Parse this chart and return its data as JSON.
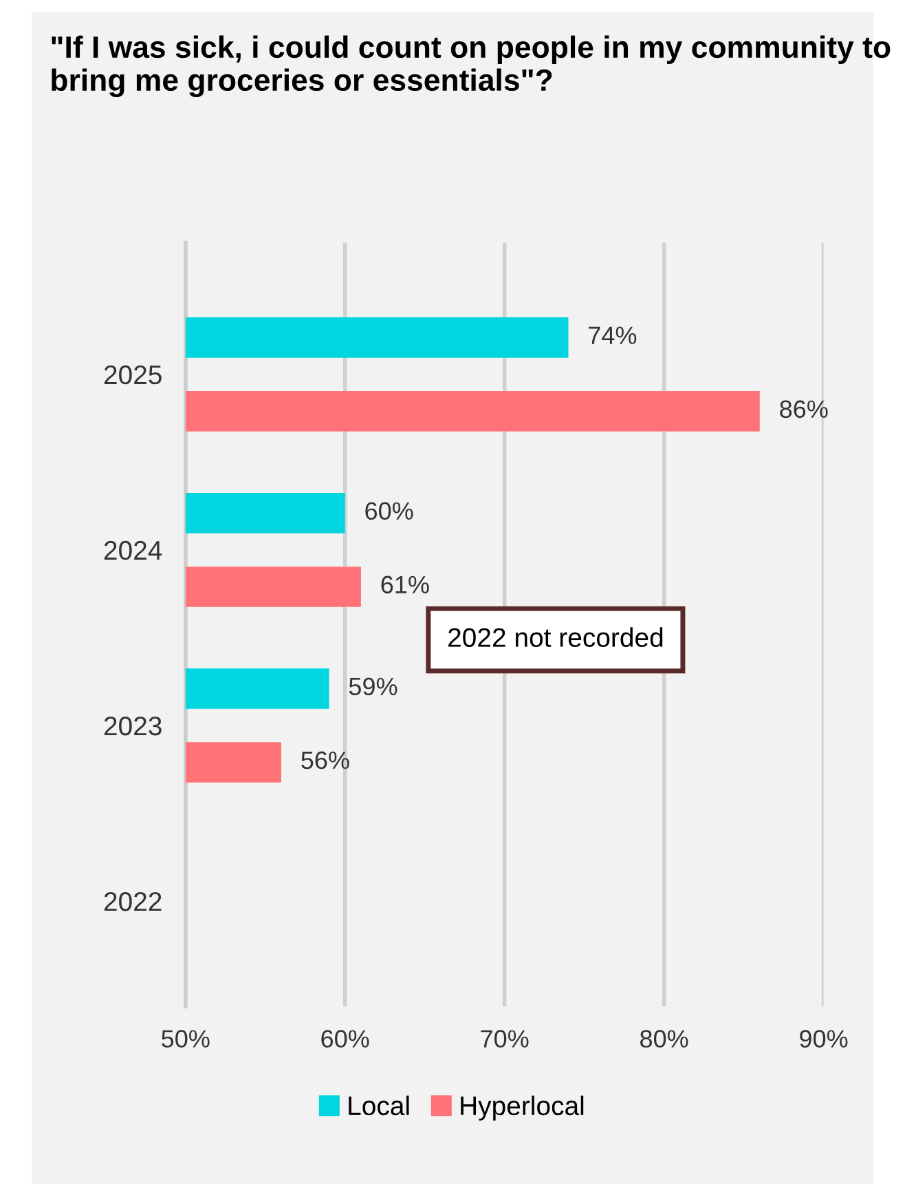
{
  "chart_data": {
    "type": "bar",
    "orientation": "horizontal",
    "title": "\"If I was sick, i could count on people in my community to bring me groceries or essentials\"?",
    "categories": [
      "2025",
      "2024",
      "2023",
      "2022"
    ],
    "series": [
      {
        "name": "Local",
        "color": "#00d5e0",
        "values": [
          74,
          60,
          59,
          null
        ],
        "value_labels": [
          "74%",
          "60%",
          "59%",
          null
        ]
      },
      {
        "name": "Hyperlocal",
        "color": "#ff7378",
        "values": [
          86,
          61,
          56,
          null
        ],
        "value_labels": [
          "86%",
          "61%",
          "56%",
          null
        ]
      }
    ],
    "xlim": [
      50,
      90
    ],
    "xticks": [
      {
        "value": 50,
        "label": "50%"
      },
      {
        "value": 60,
        "label": "60%"
      },
      {
        "value": 70,
        "label": "70%"
      },
      {
        "value": 80,
        "label": "80%"
      },
      {
        "value": 90,
        "label": "90%"
      }
    ],
    "grid": "x",
    "legend": "bottom",
    "annotations": [
      "2022 not recorded"
    ]
  }
}
